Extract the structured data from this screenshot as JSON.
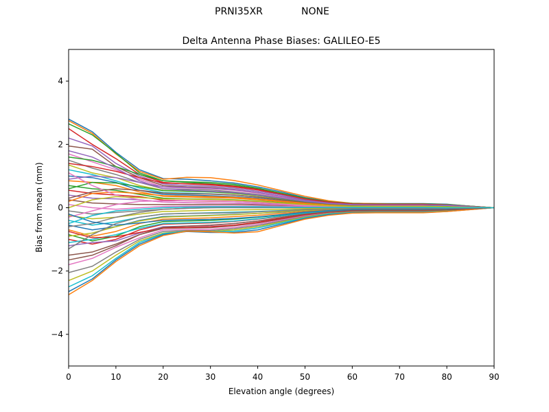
{
  "suptitle": {
    "antenna": "PRNI35XR",
    "radome": "NONE"
  },
  "chart_data": {
    "type": "line",
    "title": "Delta Antenna Phase Biases: GALILEO-E5",
    "xlabel": "Elevation angle (degrees)",
    "ylabel": "Bias from mean (mm)",
    "xlim": [
      0,
      90
    ],
    "ylim": [
      -5,
      5
    ],
    "xticks": [
      0,
      10,
      20,
      30,
      40,
      50,
      60,
      70,
      80,
      90
    ],
    "yticks": [
      -4,
      -2,
      0,
      2,
      4
    ],
    "x": [
      0,
      5,
      10,
      15,
      20,
      25,
      30,
      35,
      40,
      45,
      50,
      55,
      60,
      65,
      70,
      75,
      80,
      85,
      90
    ],
    "grid": false,
    "legend": "none",
    "colors": [
      "#1f77b4",
      "#ff7f0e",
      "#2ca02c",
      "#d62728",
      "#9467bd",
      "#8c564b",
      "#e377c2",
      "#7f7f7f",
      "#bcbd22",
      "#17becf"
    ],
    "series": [
      {
        "values": [
          2.8,
          2.4,
          1.75,
          1.2,
          0.92,
          0.9,
          0.85,
          0.78,
          0.66,
          0.5,
          0.32,
          0.2,
          0.14,
          0.13,
          0.13,
          0.13,
          0.11,
          0.05,
          0.0
        ]
      },
      {
        "values": [
          2.75,
          2.35,
          1.7,
          1.15,
          0.9,
          0.96,
          0.95,
          0.86,
          0.72,
          0.54,
          0.36,
          0.22,
          0.14,
          0.13,
          0.12,
          0.12,
          0.1,
          0.05,
          0.0
        ]
      },
      {
        "values": [
          2.65,
          2.3,
          1.72,
          1.1,
          0.85,
          0.8,
          0.76,
          0.7,
          0.6,
          0.45,
          0.3,
          0.18,
          0.13,
          0.12,
          0.12,
          0.12,
          0.1,
          0.05,
          0.0
        ]
      },
      {
        "values": [
          2.5,
          2.0,
          1.55,
          1.05,
          0.8,
          0.75,
          0.72,
          0.66,
          0.56,
          0.42,
          0.28,
          0.17,
          0.12,
          0.11,
          0.11,
          0.11,
          0.09,
          0.04,
          0.0
        ]
      },
      {
        "values": [
          2.2,
          1.95,
          1.4,
          1.0,
          0.75,
          0.7,
          0.68,
          0.62,
          0.52,
          0.4,
          0.26,
          0.16,
          0.11,
          0.1,
          0.1,
          0.1,
          0.08,
          0.04,
          0.0
        ]
      },
      {
        "values": [
          1.95,
          1.85,
          1.3,
          0.95,
          0.7,
          0.66,
          0.64,
          0.58,
          0.48,
          0.36,
          0.24,
          0.15,
          0.1,
          0.1,
          0.1,
          0.1,
          0.08,
          0.04,
          0.0
        ]
      },
      {
        "values": [
          1.7,
          1.45,
          1.2,
          0.9,
          0.65,
          0.62,
          0.6,
          0.55,
          0.46,
          0.34,
          0.22,
          0.14,
          0.1,
          0.09,
          0.09,
          0.09,
          0.07,
          0.03,
          0.0
        ]
      },
      {
        "values": [
          1.5,
          1.25,
          1.05,
          0.8,
          0.6,
          0.58,
          0.56,
          0.5,
          0.42,
          0.31,
          0.2,
          0.12,
          0.09,
          0.08,
          0.08,
          0.08,
          0.07,
          0.03,
          0.0
        ]
      },
      {
        "values": [
          1.35,
          1.1,
          0.95,
          0.7,
          0.55,
          0.52,
          0.5,
          0.45,
          0.38,
          0.28,
          0.18,
          0.11,
          0.08,
          0.07,
          0.07,
          0.07,
          0.06,
          0.03,
          0.0
        ]
      },
      {
        "values": [
          1.2,
          1.05,
          0.85,
          0.62,
          0.48,
          0.46,
          0.44,
          0.4,
          0.34,
          0.25,
          0.16,
          0.1,
          0.07,
          0.07,
          0.07,
          0.07,
          0.05,
          0.02,
          0.0
        ]
      },
      {
        "values": [
          1.0,
          0.95,
          0.8,
          0.55,
          0.42,
          0.4,
          0.38,
          0.35,
          0.3,
          0.22,
          0.14,
          0.09,
          0.06,
          0.06,
          0.06,
          0.06,
          0.05,
          0.02,
          0.0
        ]
      },
      {
        "values": [
          0.85,
          0.8,
          0.7,
          0.5,
          0.36,
          0.34,
          0.32,
          0.3,
          0.25,
          0.19,
          0.12,
          0.08,
          0.05,
          0.05,
          0.05,
          0.05,
          0.04,
          0.02,
          0.0
        ]
      },
      {
        "values": [
          0.7,
          0.6,
          0.55,
          0.42,
          0.3,
          0.28,
          0.27,
          0.25,
          0.21,
          0.16,
          0.1,
          0.07,
          0.05,
          0.04,
          0.04,
          0.04,
          0.04,
          0.02,
          0.0
        ]
      },
      {
        "values": [
          0.55,
          0.45,
          0.4,
          0.35,
          0.24,
          0.22,
          0.21,
          0.2,
          0.17,
          0.13,
          0.08,
          0.05,
          0.04,
          0.04,
          0.04,
          0.04,
          0.03,
          0.01,
          0.0
        ]
      },
      {
        "values": [
          0.4,
          0.3,
          0.28,
          0.25,
          0.18,
          0.16,
          0.15,
          0.15,
          0.13,
          0.1,
          0.06,
          0.04,
          0.03,
          0.03,
          0.03,
          0.03,
          0.02,
          0.01,
          0.0
        ]
      },
      {
        "values": [
          0.25,
          0.15,
          0.12,
          0.1,
          0.1,
          0.1,
          0.1,
          0.1,
          0.09,
          0.07,
          0.05,
          0.03,
          0.02,
          0.02,
          0.02,
          0.02,
          0.02,
          0.01,
          0.0
        ]
      },
      {
        "values": [
          0.1,
          0.0,
          -0.05,
          0.0,
          0.04,
          0.05,
          0.05,
          0.05,
          0.05,
          0.04,
          0.03,
          0.02,
          0.01,
          0.01,
          0.01,
          0.01,
          0.01,
          0.0,
          0.0
        ]
      },
      {
        "values": [
          -0.1,
          -0.2,
          -0.15,
          -0.1,
          -0.05,
          -0.02,
          0.0,
          0.0,
          0.0,
          0.0,
          0.0,
          0.0,
          0.0,
          0.0,
          0.0,
          0.0,
          0.0,
          0.0,
          0.0
        ]
      },
      {
        "values": [
          -0.25,
          -0.35,
          -0.3,
          -0.2,
          -0.12,
          -0.1,
          -0.08,
          -0.07,
          -0.06,
          -0.05,
          -0.03,
          -0.02,
          -0.01,
          -0.01,
          -0.01,
          -0.01,
          -0.01,
          0.0,
          0.0
        ]
      },
      {
        "values": [
          -0.4,
          -0.55,
          -0.45,
          -0.3,
          -0.2,
          -0.18,
          -0.16,
          -0.14,
          -0.12,
          -0.09,
          -0.06,
          -0.04,
          -0.03,
          -0.03,
          -0.03,
          -0.03,
          -0.02,
          -0.01,
          0.0
        ]
      },
      {
        "values": [
          -0.55,
          -0.7,
          -0.6,
          -0.4,
          -0.28,
          -0.26,
          -0.24,
          -0.21,
          -0.18,
          -0.14,
          -0.09,
          -0.06,
          -0.05,
          -0.04,
          -0.04,
          -0.04,
          -0.03,
          -0.01,
          0.0
        ]
      },
      {
        "values": [
          -0.7,
          -0.9,
          -0.75,
          -0.5,
          -0.36,
          -0.34,
          -0.32,
          -0.28,
          -0.24,
          -0.18,
          -0.12,
          -0.08,
          -0.06,
          -0.05,
          -0.05,
          -0.05,
          -0.04,
          -0.02,
          0.0
        ]
      },
      {
        "values": [
          -0.85,
          -1.05,
          -0.9,
          -0.6,
          -0.44,
          -0.42,
          -0.4,
          -0.36,
          -0.3,
          -0.23,
          -0.15,
          -0.1,
          -0.07,
          -0.06,
          -0.06,
          -0.06,
          -0.05,
          -0.02,
          0.0
        ]
      },
      {
        "values": [
          -1.0,
          -1.15,
          -1.0,
          -0.7,
          -0.52,
          -0.5,
          -0.48,
          -0.43,
          -0.36,
          -0.27,
          -0.18,
          -0.12,
          -0.08,
          -0.07,
          -0.07,
          -0.07,
          -0.06,
          -0.03,
          0.0
        ]
      },
      {
        "values": [
          -1.2,
          -1.1,
          -1.05,
          -0.8,
          -0.6,
          -0.58,
          -0.56,
          -0.5,
          -0.42,
          -0.32,
          -0.21,
          -0.14,
          -0.1,
          -0.09,
          -0.09,
          -0.09,
          -0.07,
          -0.03,
          0.0
        ]
      },
      {
        "values": [
          -1.5,
          -1.4,
          -1.15,
          -0.85,
          -0.65,
          -0.64,
          -0.63,
          -0.57,
          -0.48,
          -0.36,
          -0.24,
          -0.16,
          -0.11,
          -0.1,
          -0.1,
          -0.1,
          -0.08,
          -0.04,
          0.0
        ]
      },
      {
        "values": [
          -1.8,
          -1.6,
          -1.25,
          -0.95,
          -0.7,
          -0.69,
          -0.68,
          -0.62,
          -0.52,
          -0.39,
          -0.26,
          -0.17,
          -0.12,
          -0.11,
          -0.11,
          -0.11,
          -0.09,
          -0.04,
          0.0
        ]
      },
      {
        "values": [
          -2.05,
          -1.85,
          -1.4,
          -1.0,
          -0.75,
          -0.72,
          -0.72,
          -0.66,
          -0.56,
          -0.42,
          -0.28,
          -0.18,
          -0.13,
          -0.12,
          -0.12,
          -0.12,
          -0.1,
          -0.05,
          0.0
        ]
      },
      {
        "values": [
          -2.3,
          -2.0,
          -1.5,
          -1.05,
          -0.8,
          -0.74,
          -0.75,
          -0.7,
          -0.6,
          -0.45,
          -0.3,
          -0.19,
          -0.14,
          -0.13,
          -0.13,
          -0.13,
          -0.1,
          -0.05,
          0.0
        ]
      },
      {
        "values": [
          -2.5,
          -2.15,
          -1.6,
          -1.1,
          -0.82,
          -0.74,
          -0.76,
          -0.74,
          -0.64,
          -0.48,
          -0.32,
          -0.2,
          -0.15,
          -0.14,
          -0.14,
          -0.14,
          -0.11,
          -0.05,
          0.0
        ]
      },
      {
        "values": [
          -2.65,
          -2.25,
          -1.65,
          -1.15,
          -0.85,
          -0.75,
          -0.78,
          -0.78,
          -0.7,
          -0.52,
          -0.34,
          -0.22,
          -0.16,
          -0.15,
          -0.15,
          -0.15,
          -0.12,
          -0.06,
          0.0
        ]
      },
      {
        "values": [
          -2.75,
          -2.3,
          -1.7,
          -1.2,
          -0.88,
          -0.74,
          -0.76,
          -0.8,
          -0.76,
          -0.56,
          -0.36,
          -0.24,
          -0.17,
          -0.16,
          -0.16,
          -0.16,
          -0.12,
          -0.06,
          0.0
        ]
      },
      {
        "values": [
          1.6,
          1.5,
          1.3,
          1.05,
          0.85,
          0.82,
          0.8,
          0.74,
          0.62,
          0.46,
          0.3,
          0.19,
          0.13,
          0.12,
          0.12,
          0.12,
          0.1,
          0.05,
          0.0
        ]
      },
      {
        "values": [
          1.4,
          1.3,
          1.15,
          0.95,
          0.78,
          0.76,
          0.74,
          0.68,
          0.58,
          0.43,
          0.28,
          0.18,
          0.12,
          0.11,
          0.11,
          0.11,
          0.09,
          0.04,
          0.0
        ]
      },
      {
        "values": [
          0.9,
          1.0,
          0.95,
          0.8,
          0.66,
          0.64,
          0.62,
          0.57,
          0.48,
          0.36,
          0.23,
          0.15,
          0.1,
          0.09,
          0.09,
          0.09,
          0.08,
          0.04,
          0.0
        ]
      },
      {
        "values": [
          0.3,
          0.5,
          0.6,
          0.55,
          0.46,
          0.44,
          0.43,
          0.4,
          0.34,
          0.25,
          0.16,
          0.1,
          0.07,
          0.07,
          0.07,
          0.07,
          0.06,
          0.03,
          0.0
        ]
      },
      {
        "values": [
          -0.3,
          -0.1,
          0.1,
          0.2,
          0.22,
          0.22,
          0.22,
          0.2,
          0.17,
          0.13,
          0.08,
          0.05,
          0.04,
          0.04,
          0.04,
          0.04,
          0.03,
          0.01,
          0.0
        ]
      },
      {
        "values": [
          -0.6,
          -0.5,
          -0.3,
          -0.15,
          -0.05,
          -0.02,
          0.0,
          0.02,
          0.02,
          0.02,
          0.01,
          0.01,
          0.0,
          0.0,
          0.0,
          0.0,
          0.0,
          0.0,
          0.0
        ]
      },
      {
        "values": [
          -0.9,
          -0.8,
          -0.6,
          -0.42,
          -0.3,
          -0.27,
          -0.25,
          -0.22,
          -0.18,
          -0.13,
          -0.08,
          -0.05,
          -0.04,
          -0.04,
          -0.04,
          -0.04,
          -0.03,
          -0.01,
          0.0
        ]
      },
      {
        "values": [
          -1.1,
          -1.0,
          -0.85,
          -0.65,
          -0.5,
          -0.48,
          -0.46,
          -0.42,
          -0.35,
          -0.26,
          -0.17,
          -0.11,
          -0.08,
          -0.07,
          -0.07,
          -0.07,
          -0.06,
          -0.03,
          0.0
        ]
      },
      {
        "values": [
          -0.2,
          -0.45,
          -0.55,
          -0.48,
          -0.4,
          -0.38,
          -0.37,
          -0.34,
          -0.29,
          -0.22,
          -0.14,
          -0.09,
          -0.06,
          -0.06,
          -0.06,
          -0.06,
          -0.05,
          -0.02,
          0.0
        ]
      },
      {
        "values": [
          0.2,
          0.45,
          0.5,
          0.45,
          0.38,
          0.36,
          0.35,
          0.33,
          0.28,
          0.21,
          0.14,
          0.09,
          0.06,
          0.06,
          0.06,
          0.06,
          0.05,
          0.02,
          0.0
        ]
      },
      {
        "values": [
          0.6,
          0.8,
          0.78,
          0.66,
          0.54,
          0.52,
          0.5,
          0.46,
          0.39,
          0.29,
          0.19,
          0.12,
          0.08,
          0.08,
          0.08,
          0.08,
          0.06,
          0.03,
          0.0
        ]
      },
      {
        "values": [
          -0.75,
          -0.95,
          -0.92,
          -0.78,
          -0.64,
          -0.62,
          -0.6,
          -0.55,
          -0.46,
          -0.34,
          -0.22,
          -0.14,
          -0.1,
          -0.09,
          -0.09,
          -0.09,
          -0.07,
          -0.03,
          0.0
        ]
      },
      {
        "values": [
          1.8,
          1.6,
          1.25,
          0.85,
          0.6,
          0.55,
          0.52,
          0.48,
          0.4,
          0.3,
          0.2,
          0.13,
          0.09,
          0.08,
          0.08,
          0.08,
          0.07,
          0.03,
          0.0
        ]
      },
      {
        "values": [
          -1.65,
          -1.5,
          -1.2,
          -0.85,
          -0.62,
          -0.58,
          -0.55,
          -0.5,
          -0.42,
          -0.31,
          -0.2,
          -0.13,
          -0.09,
          -0.08,
          -0.08,
          -0.08,
          -0.07,
          -0.03,
          0.0
        ]
      },
      {
        "values": [
          1.1,
          0.7,
          0.4,
          0.25,
          0.18,
          0.16,
          0.15,
          0.14,
          0.12,
          0.09,
          0.06,
          0.04,
          0.03,
          0.03,
          0.03,
          0.03,
          0.02,
          0.01,
          0.0
        ]
      },
      {
        "values": [
          -1.3,
          -0.85,
          -0.5,
          -0.3,
          -0.2,
          -0.18,
          -0.17,
          -0.16,
          -0.13,
          -0.1,
          -0.06,
          -0.04,
          -0.03,
          -0.03,
          -0.03,
          -0.03,
          -0.02,
          -0.01,
          0.0
        ]
      },
      {
        "values": [
          0.0,
          0.25,
          0.35,
          0.32,
          0.28,
          0.27,
          0.26,
          0.24,
          0.2,
          0.15,
          0.1,
          0.06,
          0.04,
          0.04,
          0.04,
          0.04,
          0.03,
          0.01,
          0.0
        ]
      },
      {
        "values": [
          -0.5,
          -0.25,
          -0.1,
          -0.05,
          0.0,
          0.02,
          0.03,
          0.03,
          0.03,
          0.02,
          0.01,
          0.01,
          0.01,
          0.01,
          0.01,
          0.01,
          0.0,
          0.0,
          0.0
        ]
      }
    ]
  }
}
